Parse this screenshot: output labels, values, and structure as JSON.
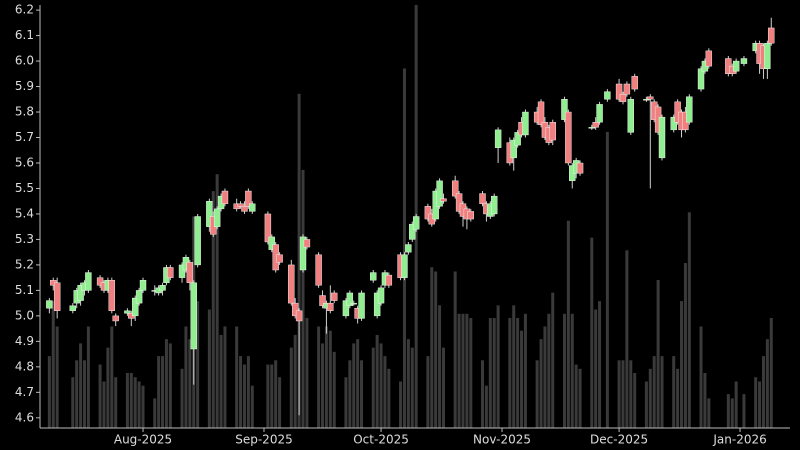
{
  "chart_data": {
    "type": "candlestick",
    "x": [
      7,
      8,
      9,
      13,
      14,
      15,
      16,
      17,
      20,
      21,
      22,
      23,
      24,
      27,
      28,
      29,
      30,
      31,
      34,
      35,
      36,
      37,
      38,
      41,
      42,
      43,
      44,
      45,
      48,
      49,
      50,
      51,
      52,
      55,
      56,
      57,
      58,
      59,
      63,
      64,
      65,
      66,
      69,
      70,
      71,
      72,
      73,
      76,
      77,
      78,
      79,
      80,
      83,
      84,
      85,
      86,
      87,
      90,
      91,
      92,
      93,
      94,
      97,
      98,
      99,
      100,
      101,
      104,
      105,
      106,
      107,
      108,
      111,
      112,
      113,
      114,
      115,
      118,
      119,
      120,
      121,
      122,
      125,
      126,
      127,
      128,
      129,
      132,
      133,
      134,
      135,
      136,
      139,
      140,
      141,
      142,
      143,
      146,
      147,
      148,
      150,
      153,
      154,
      155,
      156,
      157,
      160,
      161,
      162,
      163,
      164,
      167,
      168,
      169,
      170,
      171,
      174,
      175,
      176,
      181,
      182,
      183,
      185,
      188,
      189,
      190,
      191,
      192
    ],
    "open": [
      5.03,
      5.14,
      5.13,
      5.02,
      5.05,
      5.06,
      5.1,
      5.1,
      5.15,
      5.13,
      5.1,
      5.14,
      5.0,
      5.01,
      5.01,
      5.0,
      5.05,
      5.1,
      5.1,
      5.09,
      5.1,
      5.13,
      5.19,
      5.15,
      5.18,
      5.21,
      4.87,
      5.2,
      5.35,
      5.39,
      5.35,
      5.42,
      5.49,
      5.44,
      5.44,
      5.43,
      5.49,
      5.41,
      5.4,
      5.26,
      5.28,
      5.24,
      5.2,
      5.05,
      5.02,
      5.18,
      5.3,
      5.24,
      5.08,
      5.03,
      5.05,
      5.09,
      5.0,
      5.04,
      5.05,
      5.03,
      4.99,
      5.14,
      5.0,
      5.05,
      5.12,
      5.16,
      5.24,
      5.15,
      5.25,
      5.3,
      5.34,
      5.43,
      5.4,
      5.38,
      5.43,
      5.46,
      5.53,
      5.48,
      5.44,
      5.42,
      5.41,
      5.48,
      5.44,
      5.39,
      5.4,
      5.66,
      5.68,
      5.62,
      5.67,
      5.76,
      5.71,
      5.8,
      5.84,
      5.76,
      5.74,
      5.76,
      5.77,
      5.8,
      5.53,
      5.56,
      5.6,
      5.74,
      5.76,
      5.76,
      5.85,
      5.91,
      5.87,
      5.91,
      5.72,
      5.94,
      5.85,
      5.86,
      5.84,
      5.82,
      5.62,
      5.73,
      5.84,
      5.8,
      5.8,
      5.76,
      5.89,
      5.96,
      6.04,
      6.01,
      5.98,
      5.96,
      5.99,
      6.04,
      6.07,
      6.06,
      5.97,
      6.13
    ],
    "high": [
      5.07,
      5.15,
      5.15,
      5.05,
      5.11,
      5.13,
      5.14,
      5.18,
      5.16,
      5.14,
      5.15,
      5.15,
      5.01,
      5.03,
      5.02,
      5.08,
      5.11,
      5.15,
      5.12,
      5.12,
      5.13,
      5.2,
      5.2,
      5.21,
      5.24,
      5.22,
      5.14,
      5.4,
      5.46,
      5.41,
      5.43,
      5.48,
      5.5,
      5.46,
      5.45,
      5.45,
      5.5,
      5.45,
      5.41,
      5.32,
      5.29,
      5.25,
      5.22,
      5.07,
      5.03,
      5.32,
      5.31,
      5.25,
      5.1,
      5.06,
      5.12,
      5.1,
      5.07,
      5.1,
      5.06,
      5.04,
      5.1,
      5.18,
      5.1,
      5.12,
      5.18,
      5.17,
      5.25,
      5.25,
      5.29,
      5.37,
      5.4,
      5.44,
      5.42,
      5.5,
      5.54,
      5.48,
      5.55,
      5.49,
      5.45,
      5.43,
      5.42,
      5.49,
      5.45,
      5.45,
      5.48,
      5.74,
      5.7,
      5.7,
      5.73,
      5.78,
      5.81,
      5.82,
      5.85,
      5.78,
      5.75,
      5.77,
      5.86,
      5.81,
      5.6,
      5.62,
      5.61,
      5.75,
      5.78,
      5.84,
      5.89,
      5.93,
      5.88,
      5.92,
      5.86,
      5.95,
      5.86,
      5.87,
      5.85,
      5.83,
      5.79,
      5.79,
      5.85,
      5.81,
      5.82,
      5.87,
      5.98,
      6.01,
      6.05,
      6.02,
      5.99,
      6.01,
      6.02,
      6.08,
      6.08,
      6.07,
      6.08,
      6.17
    ],
    "low": [
      5.01,
      5.1,
      4.99,
      5.01,
      5.03,
      5.04,
      5.08,
      5.09,
      5.11,
      5.09,
      5.09,
      5.01,
      4.96,
      5.0,
      4.96,
      4.98,
      5.04,
      5.09,
      5.08,
      5.08,
      5.08,
      5.12,
      5.14,
      5.13,
      5.17,
      5.1,
      4.73,
      5.19,
      5.33,
      5.31,
      5.34,
      5.41,
      5.43,
      5.41,
      5.42,
      5.4,
      5.42,
      5.4,
      5.28,
      5.25,
      5.17,
      5.2,
      5.04,
      4.99,
      4.61,
      5.17,
      5.26,
      5.11,
      5.03,
      4.93,
      5.01,
      5.05,
      4.99,
      5.03,
      5.04,
      4.97,
      4.98,
      5.13,
      4.99,
      5.04,
      5.11,
      5.11,
      5.14,
      5.14,
      5.24,
      5.29,
      5.33,
      5.37,
      5.35,
      5.37,
      5.42,
      5.44,
      5.46,
      5.4,
      5.35,
      5.34,
      5.37,
      5.43,
      5.37,
      5.38,
      5.39,
      5.6,
      5.59,
      5.57,
      5.66,
      5.7,
      5.7,
      5.75,
      5.74,
      5.69,
      5.67,
      5.67,
      5.76,
      5.59,
      5.5,
      5.54,
      5.55,
      5.73,
      5.73,
      5.75,
      5.84,
      5.84,
      5.83,
      5.86,
      5.71,
      5.88,
      5.84,
      5.5,
      5.76,
      5.71,
      5.61,
      5.72,
      5.75,
      5.7,
      5.72,
      5.75,
      5.88,
      5.95,
      5.97,
      5.94,
      5.94,
      5.95,
      5.98,
      6.03,
      5.95,
      5.93,
      5.93,
      6.06
    ],
    "close": [
      5.06,
      5.12,
      5.02,
      5.04,
      5.1,
      5.12,
      5.13,
      5.17,
      5.12,
      5.1,
      5.14,
      5.02,
      4.98,
      5.02,
      4.99,
      5.07,
      5.1,
      5.14,
      5.1,
      5.11,
      5.12,
      5.19,
      5.15,
      5.2,
      5.23,
      5.13,
      5.13,
      5.39,
      5.45,
      5.32,
      5.42,
      5.47,
      5.44,
      5.42,
      5.43,
      5.41,
      5.43,
      5.44,
      5.29,
      5.31,
      5.18,
      5.21,
      5.05,
      5.0,
      4.98,
      5.31,
      5.27,
      5.12,
      5.04,
      5.05,
      5.02,
      5.06,
      5.06,
      5.09,
      5.05,
      4.99,
      5.09,
      5.17,
      5.09,
      5.11,
      5.17,
      5.12,
      5.15,
      5.24,
      5.28,
      5.36,
      5.39,
      5.38,
      5.36,
      5.49,
      5.53,
      5.45,
      5.47,
      5.41,
      5.39,
      5.38,
      5.38,
      5.44,
      5.4,
      5.44,
      5.47,
      5.73,
      5.6,
      5.69,
      5.72,
      5.71,
      5.8,
      5.76,
      5.75,
      5.7,
      5.68,
      5.69,
      5.85,
      5.6,
      5.59,
      5.61,
      5.56,
      5.74,
      5.74,
      5.83,
      5.88,
      5.85,
      5.84,
      5.87,
      5.85,
      5.89,
      5.85,
      5.85,
      5.77,
      5.72,
      5.78,
      5.78,
      5.76,
      5.73,
      5.73,
      5.86,
      5.97,
      6.0,
      5.98,
      5.95,
      5.95,
      6.0,
      6.01,
      6.07,
      5.99,
      5.97,
      6.07,
      6.07
    ],
    "volume": [
      17,
      30,
      24,
      12,
      16,
      20,
      16,
      24,
      15,
      11,
      19,
      24,
      12,
      13,
      13,
      12,
      11,
      10,
      7,
      17,
      17,
      21,
      20,
      14,
      24,
      21,
      50,
      30,
      28,
      56,
      60,
      22,
      24,
      24,
      17,
      15,
      17,
      10,
      15,
      15,
      16,
      12,
      19,
      22,
      79,
      61,
      26,
      24,
      20,
      24,
      23,
      18,
      12,
      16,
      20,
      21,
      16,
      19,
      22,
      20,
      17,
      14,
      11,
      85,
      21,
      19,
      100,
      17,
      38,
      37,
      29,
      19,
      37,
      27,
      27,
      27,
      26,
      16,
      10,
      26,
      26,
      29,
      26,
      29,
      26,
      23,
      27,
      16,
      21,
      24,
      27,
      32,
      27,
      49,
      27,
      15,
      14,
      45,
      28,
      30,
      70,
      16,
      16,
      42,
      16,
      13,
      11,
      14,
      17,
      35,
      17,
      17,
      14,
      30,
      39,
      51,
      24,
      13,
      7,
      8,
      7,
      11,
      8,
      12,
      11,
      17,
      21,
      26
    ],
    "axis": "y2",
    "up_color": "#90ee90",
    "down_color": "#f08080",
    "wick_color": "#d0d0d0",
    "volume_color": "#3a3a3a",
    "xlim": [
      4.6,
      196.8
    ],
    "xticks": [
      {
        "value": 31,
        "label": "Aug-2025"
      },
      {
        "value": 62,
        "label": "Sep-2025"
      },
      {
        "value": 92,
        "label": "Oct-2025"
      },
      {
        "value": 123,
        "label": "Nov-2025"
      },
      {
        "value": 153,
        "label": "Dec-2025"
      },
      {
        "value": 184,
        "label": "Jan-2026"
      }
    ],
    "ylim": [
      4.56,
      6.22
    ],
    "yticks": [
      4.6,
      4.7,
      4.8,
      4.9,
      {
        "value": 5,
        "label": "5.0"
      },
      5.1,
      5.2,
      5.3,
      5.4,
      5.5,
      5.6,
      5.7,
      5.8,
      5.9,
      {
        "value": 6,
        "label": "6.0"
      },
      6.1,
      6.2
    ],
    "y2lim": [
      0,
      100
    ]
  }
}
